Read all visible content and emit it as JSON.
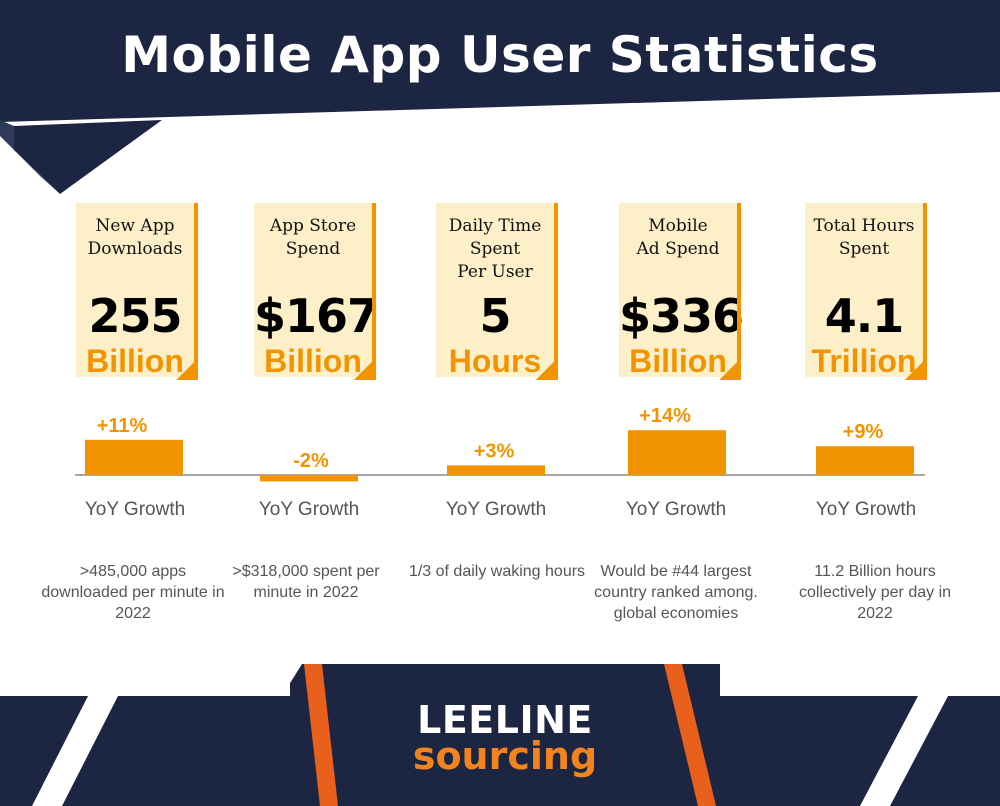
{
  "title": "Mobile App User Statistics",
  "colors": {
    "navy": "#1c2541",
    "orange": "#f29400",
    "card_bg": "#fdf0c8",
    "brand_orange": "#f2841f"
  },
  "cards": [
    {
      "label": "New App\nDownloads",
      "value": "255",
      "unit": "Billion"
    },
    {
      "label": "App Store\nSpend",
      "value": "$167",
      "unit": "Billion"
    },
    {
      "label": "Daily Time Spent\nPer User",
      "value": "5",
      "unit": "Hours"
    },
    {
      "label": "Mobile\nAd Spend",
      "value": "$336",
      "unit": "Billion"
    },
    {
      "label": "Total Hours\nSpent",
      "value": "4.1",
      "unit": "Trillion"
    }
  ],
  "growth_label": "YoY Growth",
  "notes": [
    ">485,000 apps downloaded per minute in 2022",
    ">$318,000 spent per minute in 2022",
    "1/3 of daily waking hours",
    "Would be #44 largest country ranked among. global economies",
    "11.2 Billion hours collectively per day in 2022"
  ],
  "chart_data": {
    "type": "bar",
    "categories": [
      "New App Downloads",
      "App Store Spend",
      "Daily Time Spent Per User",
      "Mobile Ad Spend",
      "Total Hours Spent"
    ],
    "values": [
      11,
      -2,
      3,
      14,
      9
    ],
    "data_labels": [
      "+11%",
      "-2%",
      "+3%",
      "+14%",
      "+9%"
    ],
    "ylabel": "YoY Growth",
    "ylim": [
      -2,
      14
    ],
    "grid": false
  },
  "brand": {
    "line1": "LEELINE",
    "line2": "sourcing"
  }
}
